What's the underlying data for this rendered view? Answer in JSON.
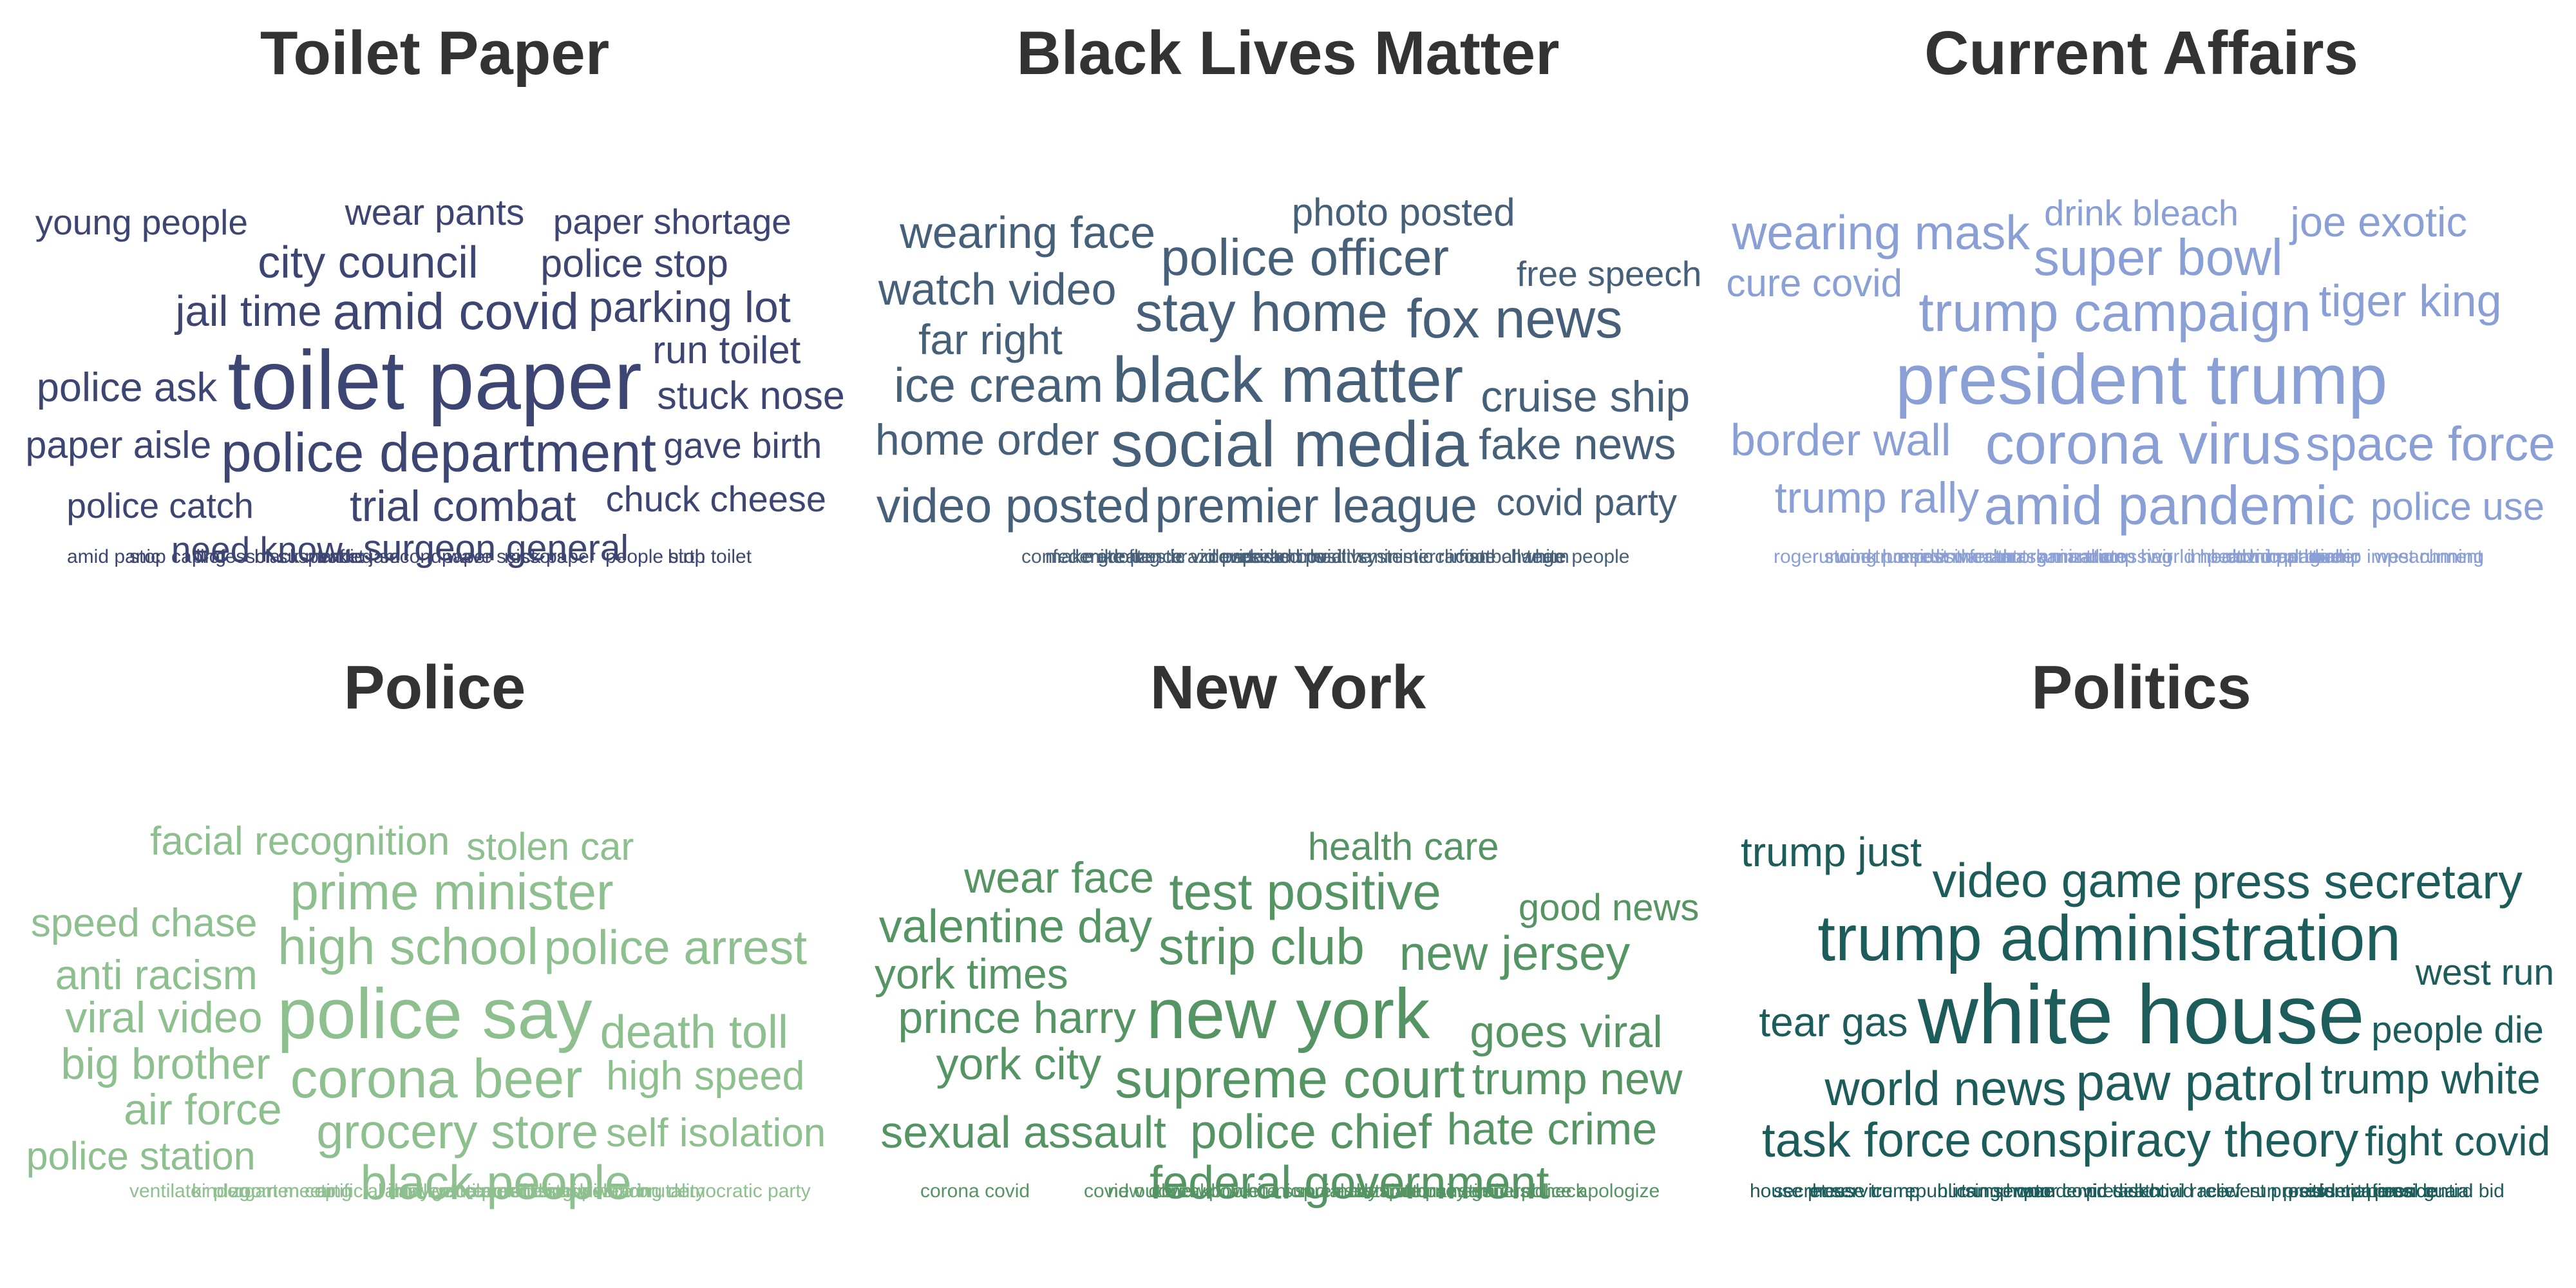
{
  "chart_data": {
    "type": "word_cloud",
    "panels": [
      {
        "title": "Toilet Paper",
        "color": "#3d4673",
        "words": [
          {
            "text": "toilet paper",
            "weight": 1.0
          },
          {
            "text": "police department",
            "weight": 0.55
          },
          {
            "text": "amid covid",
            "weight": 0.5
          },
          {
            "text": "city council",
            "weight": 0.4
          },
          {
            "text": "trial combat",
            "weight": 0.38
          },
          {
            "text": "parking lot",
            "weight": 0.38
          },
          {
            "text": "jail time",
            "weight": 0.37
          },
          {
            "text": "police ask",
            "weight": 0.33
          },
          {
            "text": "police stop",
            "weight": 0.31
          },
          {
            "text": "stuck nose",
            "weight": 0.31
          },
          {
            "text": "run toilet",
            "weight": 0.3
          },
          {
            "text": "paper aisle",
            "weight": 0.29
          },
          {
            "text": "wear pants",
            "weight": 0.27
          },
          {
            "text": "surgeon general",
            "weight": 0.27
          },
          {
            "text": "gave birth",
            "weight": 0.26
          },
          {
            "text": "chuck cheese",
            "weight": 0.26
          },
          {
            "text": "police catch",
            "weight": 0.25
          },
          {
            "text": "paper shortage",
            "weight": 0.25
          },
          {
            "text": "young people",
            "weight": 0.25
          },
          {
            "text": "need know",
            "weight": 0.25
          },
          {
            "text": "people stop",
            "weight": 0.25
          },
          {
            "text": "birth toilet",
            "weight": 0.25
          },
          {
            "text": "amid panic",
            "weight": 0.25
          },
          {
            "text": "stop calling",
            "weight": 0.24
          },
          {
            "text": "professor suspended",
            "weight": 0.24
          },
          {
            "text": "black market",
            "weight": 0.24
          },
          {
            "text": "traffic jam",
            "weight": 0.24
          },
          {
            "text": "second wave",
            "weight": 0.24
          },
          {
            "text": "paper scissors",
            "weight": 0.22
          },
          {
            "text": "rock paper",
            "weight": 0.22
          }
        ]
      },
      {
        "title": "Black Lives Matter",
        "color": "#46607a",
        "words": [
          {
            "text": "black matter",
            "weight": 0.7
          },
          {
            "text": "social media",
            "weight": 0.7
          },
          {
            "text": "stay home",
            "weight": 0.55
          },
          {
            "text": "fox news",
            "weight": 0.55
          },
          {
            "text": "police officer",
            "weight": 0.5
          },
          {
            "text": "premier league",
            "weight": 0.45
          },
          {
            "text": "tested positive",
            "weight": 0.45
          },
          {
            "text": "health minister",
            "weight": 0.45
          },
          {
            "text": "video posted",
            "weight": 0.45
          },
          {
            "text": "climate change",
            "weight": 0.45
          },
          {
            "text": "ice cream",
            "weight": 0.45
          },
          {
            "text": "wearing face",
            "weight": 0.4
          },
          {
            "text": "watch video",
            "weight": 0.4
          },
          {
            "text": "confederate flag",
            "weight": 0.4
          },
          {
            "text": "mike pence",
            "weight": 0.4
          },
          {
            "text": "cruise ship",
            "weight": 0.38
          },
          {
            "text": "covid vaccine",
            "weight": 0.38
          },
          {
            "text": "home order",
            "weight": 0.38
          },
          {
            "text": "fake news",
            "weight": 0.38
          },
          {
            "text": "far right",
            "weight": 0.36
          },
          {
            "text": "football team",
            "weight": 0.33
          },
          {
            "text": "white people",
            "weight": 0.33
          },
          {
            "text": "photo posted",
            "weight": 0.3
          },
          {
            "text": "covid party",
            "weight": 0.28
          },
          {
            "text": "make great",
            "weight": 0.26
          },
          {
            "text": "domestic violence",
            "weight": 0.26
          },
          {
            "text": "brazil president",
            "weight": 0.26
          },
          {
            "text": "spread covid",
            "weight": 0.25
          },
          {
            "text": "free speech",
            "weight": 0.25
          },
          {
            "text": "systemic racism",
            "weight": 0.24
          }
        ]
      },
      {
        "title": "Current Affairs",
        "color": "#8a9fd6",
        "words": [
          {
            "text": "president trump",
            "weight": 0.8
          },
          {
            "text": "corona virus",
            "weight": 0.6
          },
          {
            "text": "trump campaign",
            "weight": 0.55
          },
          {
            "text": "amid pandemic",
            "weight": 0.55
          },
          {
            "text": "super bowl",
            "weight": 0.5
          },
          {
            "text": "animal crossing",
            "weight": 0.5
          },
          {
            "text": "wearing mask",
            "weight": 0.45
          },
          {
            "text": "space force",
            "weight": 0.45
          },
          {
            "text": "covid pandemic",
            "weight": 0.4
          },
          {
            "text": "border wall",
            "weight": 0.4
          },
          {
            "text": "tiger king",
            "weight": 0.4
          },
          {
            "text": "trump rally",
            "weight": 0.38
          },
          {
            "text": "running president",
            "weight": 0.38
          },
          {
            "text": "trump disinfectant",
            "weight": 0.35
          },
          {
            "text": "joe exotic",
            "weight": 0.35
          },
          {
            "text": "mask mandate",
            "weight": 0.33
          },
          {
            "text": "cure covid",
            "weight": 0.3
          },
          {
            "text": "police use",
            "weight": 0.3
          },
          {
            "text": "impeachment trial",
            "weight": 0.3
          },
          {
            "text": "trump border",
            "weight": 0.3
          },
          {
            "text": "trump impeachment",
            "weight": 0.3
          },
          {
            "text": "west running",
            "weight": 0.3
          },
          {
            "text": "roger stone",
            "weight": 0.3
          },
          {
            "text": "work home",
            "weight": 0.3
          },
          {
            "text": "arrest warrant",
            "weight": 0.27
          },
          {
            "text": "health organization",
            "weight": 0.27
          },
          {
            "text": "drink bleach",
            "weight": 0.26
          },
          {
            "text": "trump hair",
            "weight": 0.26
          },
          {
            "text": "world health",
            "weight": 0.26
          },
          {
            "text": "bubonic plague",
            "weight": 0.26
          }
        ]
      },
      {
        "title": "Police",
        "color": "#8dc08e",
        "words": [
          {
            "text": "police say",
            "weight": 0.8
          },
          {
            "text": "corona beer",
            "weight": 0.55
          },
          {
            "text": "high school",
            "weight": 0.5
          },
          {
            "text": "prime minister",
            "weight": 0.5
          },
          {
            "text": "grocery store",
            "weight": 0.45
          },
          {
            "text": "black people",
            "weight": 0.45
          },
          {
            "text": "law enforcement",
            "weight": 0.45
          },
          {
            "text": "police arrest",
            "weight": 0.45
          },
          {
            "text": "death toll",
            "weight": 0.42
          },
          {
            "text": "police brutality",
            "weight": 0.4
          },
          {
            "text": "viral video",
            "weight": 0.38
          },
          {
            "text": "big brother",
            "weight": 0.38
          },
          {
            "text": "air force",
            "weight": 0.38
          },
          {
            "text": "anti racism",
            "weight": 0.35
          },
          {
            "text": "zoom meeting",
            "weight": 0.35
          },
          {
            "text": "high speed",
            "weight": 0.33
          },
          {
            "text": "speed chase",
            "weight": 0.32
          },
          {
            "text": "facial recognition",
            "weight": 0.32
          },
          {
            "text": "racial discrimination",
            "weight": 0.32
          },
          {
            "text": "mask wearing",
            "weight": 0.32
          },
          {
            "text": "self isolation",
            "weight": 0.32
          },
          {
            "text": "democratic party",
            "weight": 0.31
          },
          {
            "text": "police station",
            "weight": 0.31
          },
          {
            "text": "ventilator plug",
            "weight": 0.3
          },
          {
            "text": "kindergarten cop",
            "weight": 0.3
          },
          {
            "text": "stolen car",
            "weight": 0.3
          },
          {
            "text": "artificial intelligence",
            "weight": 0.3
          },
          {
            "text": "family ventilator",
            "weight": 0.28
          },
          {
            "text": "vice president",
            "weight": 0.28
          },
          {
            "text": "refusing wear",
            "weight": 0.27
          }
        ]
      },
      {
        "title": "New York",
        "color": "#559463",
        "words": [
          {
            "text": "new york",
            "weight": 0.8
          },
          {
            "text": "supreme court",
            "weight": 0.55
          },
          {
            "text": "strip club",
            "weight": 0.5
          },
          {
            "text": "test positive",
            "weight": 0.5
          },
          {
            "text": "police chief",
            "weight": 0.45
          },
          {
            "text": "new jersey",
            "weight": 0.45
          },
          {
            "text": "federal government",
            "weight": 0.42
          },
          {
            "text": "valentine day",
            "weight": 0.42
          },
          {
            "text": "sexual assault",
            "weight": 0.4
          },
          {
            "text": "prince harry",
            "weight": 0.4
          },
          {
            "text": "goes viral",
            "weight": 0.4
          },
          {
            "text": "york city",
            "weight": 0.4
          },
          {
            "text": "trump new",
            "weight": 0.4
          },
          {
            "text": "hate crime",
            "weight": 0.4
          },
          {
            "text": "covid outbreak",
            "weight": 0.38
          },
          {
            "text": "wear face",
            "weight": 0.38
          },
          {
            "text": "police union",
            "weight": 0.36
          },
          {
            "text": "york times",
            "weight": 0.36
          },
          {
            "text": "essential business",
            "weight": 0.35
          },
          {
            "text": "attorney general",
            "weight": 0.35
          },
          {
            "text": "stimulus check",
            "weight": 0.33
          },
          {
            "text": "police apologize",
            "weight": 0.33
          },
          {
            "text": "corona covid",
            "weight": 0.33
          },
          {
            "text": "health care",
            "weight": 0.3
          },
          {
            "text": "good news",
            "weight": 0.28
          },
          {
            "text": "new covid",
            "weight": 0.28
          },
          {
            "text": "new book",
            "weight": 0.28
          },
          {
            "text": "white supremacy",
            "weight": 0.27
          },
          {
            "text": "social distance",
            "weight": 0.27
          },
          {
            "text": "despite pandemic",
            "weight": 0.27
          }
        ]
      },
      {
        "title": "Politics",
        "color": "#1c5c5a",
        "words": [
          {
            "text": "white house",
            "weight": 1.0
          },
          {
            "text": "trump administration",
            "weight": 0.7
          },
          {
            "text": "paw patrol",
            "weight": 0.5
          },
          {
            "text": "world news",
            "weight": 0.45
          },
          {
            "text": "conspiracy theory",
            "weight": 0.45
          },
          {
            "text": "video game",
            "weight": 0.45
          },
          {
            "text": "press secretary",
            "weight": 0.45
          },
          {
            "text": "task force",
            "weight": 0.45
          },
          {
            "text": "west presidential",
            "weight": 0.4
          },
          {
            "text": "press conference",
            "weight": 0.4
          },
          {
            "text": "national guard",
            "weight": 0.4
          },
          {
            "text": "house press",
            "weight": 0.36
          },
          {
            "text": "house trump",
            "weight": 0.36
          },
          {
            "text": "trump white",
            "weight": 0.36
          },
          {
            "text": "nursing home",
            "weight": 0.35
          },
          {
            "text": "tear gas",
            "weight": 0.34
          },
          {
            "text": "covid death",
            "weight": 0.34
          },
          {
            "text": "fight covid",
            "weight": 0.34
          },
          {
            "text": "trump just",
            "weight": 0.34
          },
          {
            "text": "run president",
            "weight": 0.33
          },
          {
            "text": "trump press",
            "weight": 0.32
          },
          {
            "text": "presidential bid",
            "weight": 0.28
          },
          {
            "text": "secret service",
            "weight": 0.28
          },
          {
            "text": "people die",
            "weight": 0.28
          },
          {
            "text": "republican senator",
            "weight": 0.27
          },
          {
            "text": "trump won",
            "weight": 0.27
          },
          {
            "text": "pandemic task",
            "weight": 0.27
          },
          {
            "text": "presidential race",
            "weight": 0.27
          },
          {
            "text": "covid relief",
            "weight": 0.27
          },
          {
            "text": "west run",
            "weight": 0.27
          }
        ]
      }
    ]
  }
}
